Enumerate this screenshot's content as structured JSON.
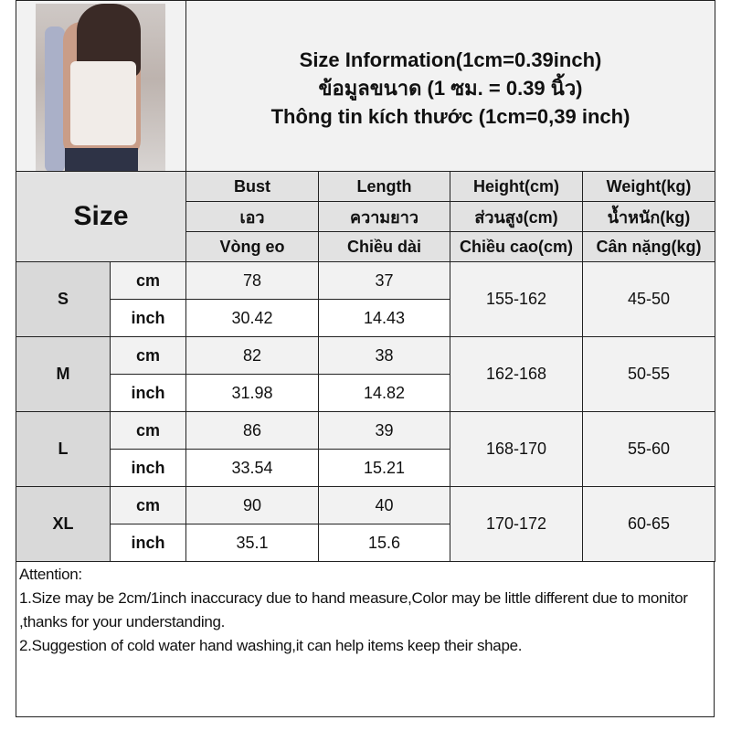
{
  "title_lines": [
    "Size Information(1cm=0.39inch)",
    "ข้อมูลขนาด (1 ซม. = 0.39 นิ้ว)",
    "Thông tin kích thước (1cm=0,39 inch)"
  ],
  "size_label": "Size",
  "headers": [
    [
      "Bust",
      "Length",
      "Height(cm)",
      "Weight(kg)"
    ],
    [
      "เอว",
      "ความยาว",
      "ส่วนสูง(cm)",
      "น้ำหนัก(kg)"
    ],
    [
      "Vòng eo",
      "Chiều dài",
      "Chiều cao(cm)",
      "Cân nặng(kg)"
    ]
  ],
  "units": {
    "cm": "cm",
    "inch": "inch"
  },
  "sizes": [
    {
      "size": "S",
      "cm": [
        "78",
        "37"
      ],
      "inch": [
        "30.42",
        "14.43"
      ],
      "height": "155-162",
      "weight": "45-50"
    },
    {
      "size": "M",
      "cm": [
        "82",
        "38"
      ],
      "inch": [
        "31.98",
        "14.82"
      ],
      "height": "162-168",
      "weight": "50-55"
    },
    {
      "size": "L",
      "cm": [
        "86",
        "39"
      ],
      "inch": [
        "33.54",
        "15.21"
      ],
      "height": "168-170",
      "weight": "55-60"
    },
    {
      "size": "XL",
      "cm": [
        "90",
        "40"
      ],
      "inch": [
        "35.1",
        "15.6"
      ],
      "height": "170-172",
      "weight": "60-65"
    }
  ],
  "attention": {
    "heading": "Attention:",
    "items": [
      "1.Size may be 2cm/1inch inaccuracy due to hand measure,Color may be little different due to monitor ,thanks for your understanding.",
      "2.Suggestion of cold water hand washing,it can help items keep their shape."
    ]
  }
}
